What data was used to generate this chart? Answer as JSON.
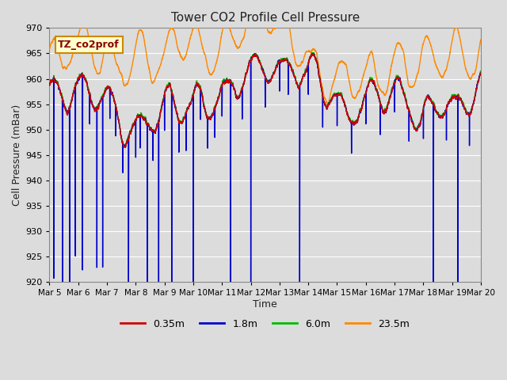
{
  "title": "Tower CO2 Profile Cell Pressure",
  "xlabel": "Time",
  "ylabel": "Cell Pressure (mBar)",
  "ylim": [
    920,
    970
  ],
  "series_labels": [
    "0.35m",
    "1.8m",
    "6.0m",
    "23.5m"
  ],
  "series_colors": [
    "#cc0000",
    "#0000cc",
    "#00bb00",
    "#ff8800"
  ],
  "series_linewidths": [
    1.0,
    1.0,
    1.0,
    1.0
  ],
  "xtick_labels": [
    "Mar 5",
    "Mar 6",
    "Mar 7",
    "Mar 8",
    "Mar 9",
    "Mar 10",
    "Mar 11",
    "Mar 12",
    "Mar 13",
    "Mar 14",
    "Mar 15",
    "Mar 16",
    "Mar 17",
    "Mar 18",
    "Mar 19",
    "Mar 20"
  ],
  "legend_label": "TZ_co2prof",
  "legend_bg": "#ffffcc",
  "legend_border": "#cc8800",
  "plot_bg": "#dcdcdc",
  "fig_bg": "#dcdcdc",
  "grid_color": "#ffffff",
  "n_points": 7200
}
